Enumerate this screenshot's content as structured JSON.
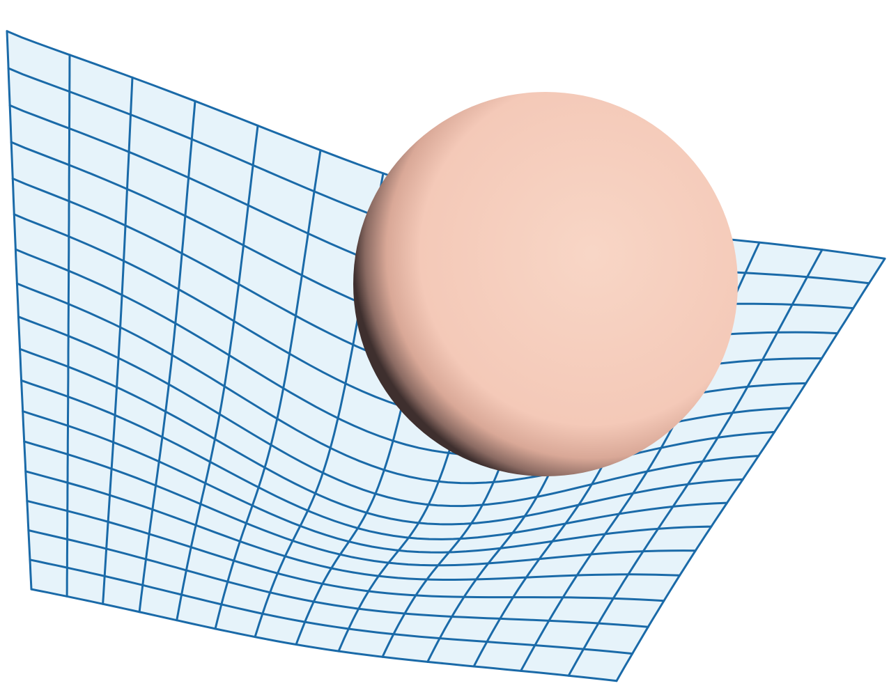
{
  "figure": {
    "description_labels": [],
    "colors": {
      "background": "#ffffff",
      "sheet_fill": "#e6f3fa",
      "grid_line": "#1a6aa8",
      "sphere_light": "#f8d6c6",
      "sphere_mid": "#f4c7b5",
      "sphere_shadow": "#4a3a38"
    },
    "elements": {
      "sheet": "curved-grid-sheet",
      "mass": "sphere"
    }
  }
}
